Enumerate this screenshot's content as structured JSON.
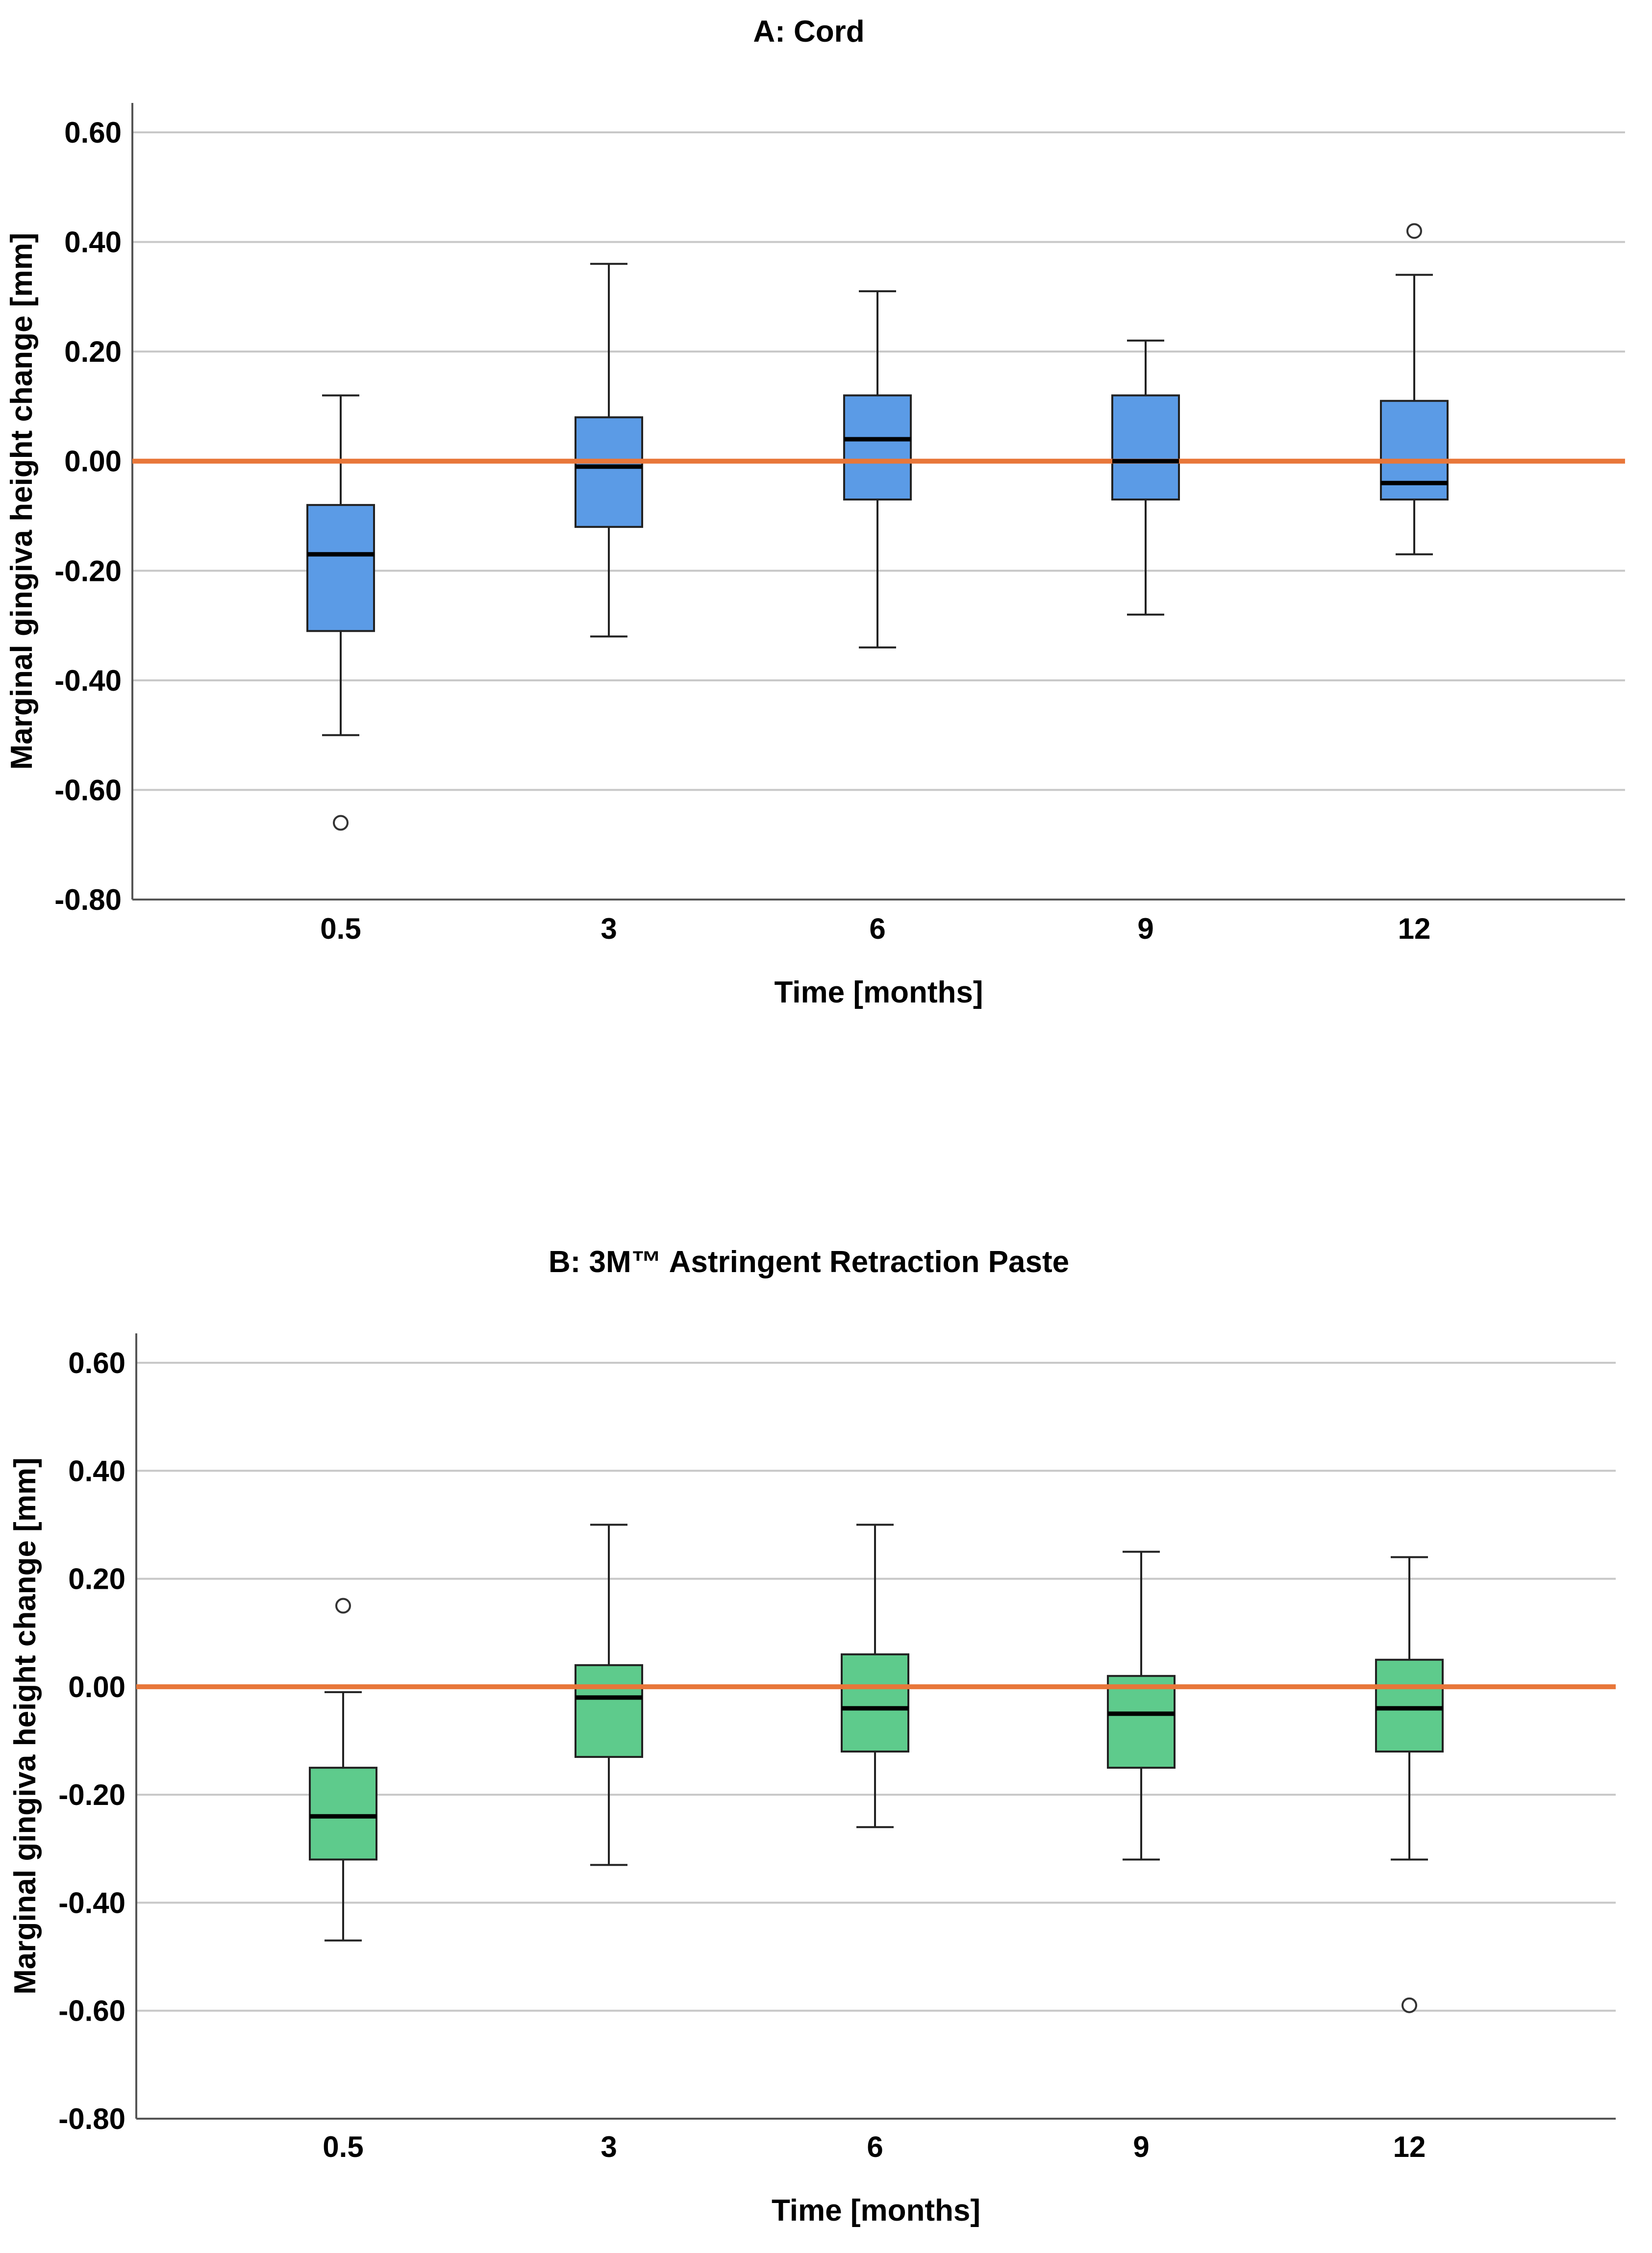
{
  "chart_data": [
    {
      "type": "box",
      "title": "A: Cord",
      "xlabel": "Time [months]",
      "ylabel": "Marginal gingiva height change [mm]",
      "ylim": [
        -0.8,
        0.7
      ],
      "yticks": [
        "0.60",
        "0.40",
        "0.20",
        "0.00",
        "-0.20",
        "-0.40",
        "-0.60",
        "-0.80"
      ],
      "ytick_values": [
        0.6,
        0.4,
        0.2,
        0.0,
        -0.2,
        -0.4,
        -0.6,
        -0.8
      ],
      "categories": [
        "0.5",
        "3",
        "6",
        "9",
        "12"
      ],
      "grid": true,
      "reference_line": 0.0,
      "box_color": "#5B9BE6",
      "reference_color": "#E8773A",
      "boxes": [
        {
          "whisker_low": -0.5,
          "q1": -0.31,
          "median": -0.17,
          "q3": -0.08,
          "whisker_high": 0.12,
          "outliers": [
            -0.66
          ]
        },
        {
          "whisker_low": -0.32,
          "q1": -0.12,
          "median": -0.01,
          "q3": 0.08,
          "whisker_high": 0.36,
          "outliers": []
        },
        {
          "whisker_low": -0.34,
          "q1": -0.07,
          "median": 0.04,
          "q3": 0.12,
          "whisker_high": 0.31,
          "outliers": []
        },
        {
          "whisker_low": -0.28,
          "q1": -0.07,
          "median": 0.0,
          "q3": 0.12,
          "whisker_high": 0.22,
          "outliers": []
        },
        {
          "whisker_low": -0.17,
          "q1": -0.07,
          "median": -0.04,
          "q3": 0.11,
          "whisker_high": 0.34,
          "outliers": [
            0.42
          ]
        }
      ]
    },
    {
      "type": "box",
      "title": "B: 3M™ Astringent Retraction Paste",
      "xlabel": "Time [months]",
      "ylabel": "Marginal gingiva height change [mm]",
      "ylim": [
        -0.8,
        0.7
      ],
      "yticks": [
        "0.60",
        "0.40",
        "0.20",
        "0.00",
        "-0.20",
        "-0.40",
        "-0.60",
        "-0.80"
      ],
      "ytick_values": [
        0.6,
        0.4,
        0.2,
        0.0,
        -0.2,
        -0.4,
        -0.6,
        -0.8
      ],
      "categories": [
        "0.5",
        "3",
        "6",
        "9",
        "12"
      ],
      "grid": true,
      "reference_line": 0.0,
      "box_color": "#5ECB8C",
      "reference_color": "#E8773A",
      "boxes": [
        {
          "whisker_low": -0.47,
          "q1": -0.32,
          "median": -0.24,
          "q3": -0.15,
          "whisker_high": -0.01,
          "outliers": [
            0.15
          ]
        },
        {
          "whisker_low": -0.33,
          "q1": -0.13,
          "median": -0.02,
          "q3": 0.04,
          "whisker_high": 0.3,
          "outliers": []
        },
        {
          "whisker_low": -0.26,
          "q1": -0.12,
          "median": -0.04,
          "q3": 0.06,
          "whisker_high": 0.3,
          "outliers": []
        },
        {
          "whisker_low": -0.32,
          "q1": -0.15,
          "median": -0.05,
          "q3": 0.02,
          "whisker_high": 0.25,
          "outliers": []
        },
        {
          "whisker_low": -0.32,
          "q1": -0.12,
          "median": -0.04,
          "q3": 0.05,
          "whisker_high": 0.24,
          "outliers": [
            -0.59
          ]
        }
      ]
    }
  ]
}
